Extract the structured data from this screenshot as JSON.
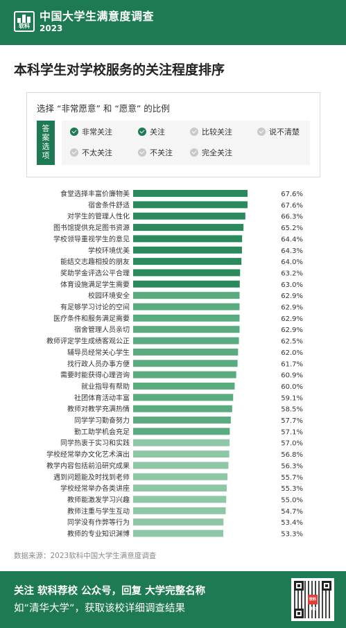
{
  "header": {
    "logo_text": "软科",
    "brand": "中国大学生满意度调查",
    "year": "2023"
  },
  "title": "本科学生对学校服务的关注程度排序",
  "legend": {
    "question": "选择 “非常愿意” 和 “愿意” 的比例",
    "answer_label": "答案选项",
    "options": [
      {
        "label": "非常关注",
        "checked": true
      },
      {
        "label": "关注",
        "checked": true
      },
      {
        "label": "比较关注",
        "checked": false
      },
      {
        "label": "说不清楚",
        "checked": false
      },
      {
        "label": "不太关注",
        "checked": false
      },
      {
        "label": "不关注",
        "checked": false
      },
      {
        "label": "完全关注",
        "checked": false
      }
    ]
  },
  "chart_data": {
    "type": "bar",
    "orientation": "horizontal",
    "categories": [
      "食堂选择丰富价廉物美",
      "宿舍条件舒适",
      "对学生的管理人性化",
      "图书馆提供充足图书资源",
      "学校领导重视学生的意见",
      "学校环境优美",
      "能结交志趣相投的朋友",
      "奖助学金评选公平合理",
      "体育设施满足学生需要",
      "校园环境安全",
      "有足够学习讨论的空间",
      "医疗条件和服务满足需要",
      "宿舍管理人员亲切",
      "教师评定学生成绩客观公正",
      "辅导员经常关心学生",
      "找行政人员办事方便",
      "需要时能获得心理咨询",
      "就业指导有帮助",
      "社团体育活动丰富",
      "教师对教学充满热情",
      "同学学习勤奋努力",
      "勤工助学机会充足",
      "同学热衷于实习和实践",
      "学校经常举办文化艺术演出",
      "教学内容包括前沿研究成果",
      "遇到问题能及时找到老师",
      "学校经常举办各类讲座",
      "教师能激发学习兴趣",
      "教师注重与学生互动",
      "同学没有作弊等行为",
      "教师的专业知识渊博"
    ],
    "values": [
      67.6,
      67.6,
      66.3,
      65.2,
      64.4,
      64.3,
      64.0,
      63.2,
      63.0,
      62.9,
      62.9,
      62.9,
      62.9,
      62.5,
      62.0,
      61.7,
      60.9,
      60.0,
      59.1,
      58.5,
      57.7,
      57.1,
      57.0,
      56.8,
      56.3,
      55.7,
      55.3,
      55.0,
      54.7,
      53.4,
      53.3
    ],
    "value_labels": [
      "67.6%",
      "67.6%",
      "66.3%",
      "65.2%",
      "64.4%",
      "64.3%",
      "64.0%",
      "63.2%",
      "63.0%",
      "62.9%",
      "62.9%",
      "62.9%",
      "62.9%",
      "62.5%",
      "62.0%",
      "61.7%",
      "60.9%",
      "60.0%",
      "59.1%",
      "58.5%",
      "57.7%",
      "57.1%",
      "57.0%",
      "56.8%",
      "56.3%",
      "55.7%",
      "55.3%",
      "55.0%",
      "54.7%",
      "53.4%",
      "53.3%"
    ],
    "colors": {
      "dark": "#2a8a5c",
      "mid": "#5aab80",
      "light": "#8ec7a6"
    },
    "sorted": "descending"
  },
  "source": "数据来源：2023软科中国大学生满意度调查",
  "footer": {
    "line1": "关注 软科荐校 公众号，回复 大学完整名称",
    "line2": "如“清华大学”，获取该校详细调查结果",
    "qr_badge": "软科荐校"
  },
  "colors": {
    "brand_green": "#1e7a52"
  }
}
